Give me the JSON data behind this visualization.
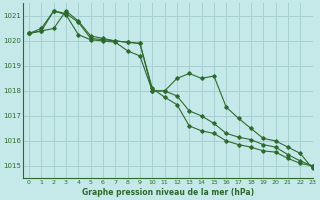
{
  "xlabel": "Graphe pression niveau de la mer (hPa)",
  "bg_color": "#c5e8e8",
  "grid_color": "#a8d0d0",
  "line_color": "#2d6b2d",
  "xlim": [
    -0.5,
    23
  ],
  "ylim": [
    1014.5,
    1021.5
  ],
  "yticks": [
    1015,
    1016,
    1017,
    1018,
    1019,
    1020,
    1021
  ],
  "xticks": [
    0,
    1,
    2,
    3,
    4,
    5,
    6,
    7,
    8,
    9,
    10,
    11,
    12,
    13,
    14,
    15,
    16,
    17,
    18,
    19,
    20,
    21,
    22,
    23
  ],
  "series": [
    [
      1020.3,
      1020.4,
      1020.5,
      1021.2,
      1020.8,
      1020.2,
      1020.1,
      1020.0,
      1019.95,
      1019.9,
      1018.0,
      1018.0,
      1017.8,
      1017.2,
      1017.0,
      1016.7,
      1016.3,
      1016.15,
      1016.05,
      1015.85,
      1015.75,
      1015.45,
      1015.2,
      1015.0
    ],
    [
      1020.3,
      1020.4,
      1021.2,
      1021.05,
      1020.25,
      1020.05,
      1020.0,
      1019.95,
      1019.6,
      1019.4,
      1018.0,
      1018.0,
      1018.5,
      1018.7,
      1018.5,
      1018.6,
      1017.35,
      1016.9,
      1016.5,
      1016.1,
      1016.0,
      1015.75,
      1015.5,
      1014.9
    ],
    [
      1020.3,
      1020.5,
      1021.2,
      1021.1,
      1020.75,
      1020.1,
      1020.05,
      1020.0,
      1019.95,
      1019.9,
      1018.1,
      1017.75,
      1017.45,
      1016.6,
      1016.4,
      1016.3,
      1016.0,
      1015.85,
      1015.75,
      1015.6,
      1015.55,
      1015.3,
      1015.1,
      1015.0
    ]
  ]
}
